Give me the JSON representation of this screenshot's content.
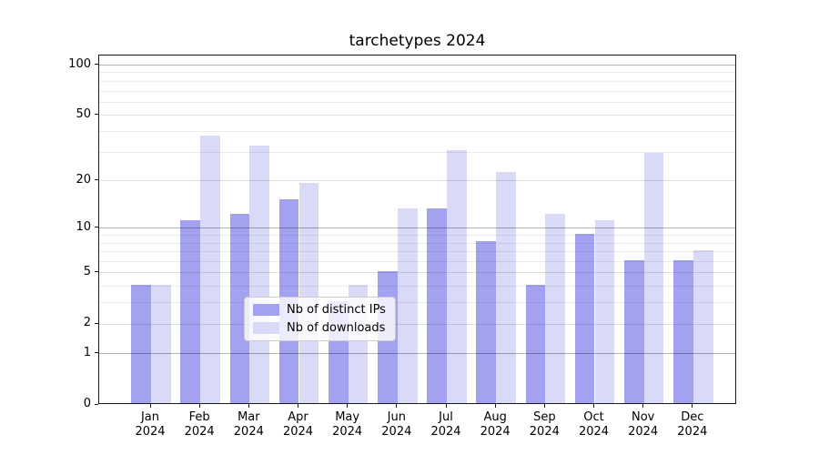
{
  "title": "tarchetypes 2024",
  "chart_data": {
    "type": "bar",
    "title": "tarchetypes 2024",
    "xlabel": "",
    "ylabel": "",
    "yscale": "log1p",
    "ylim": [
      0,
      114
    ],
    "grid": true,
    "legend_position": "lower center",
    "categories": [
      "Jan 2024",
      "Feb 2024",
      "Mar 2024",
      "Apr 2024",
      "May 2024",
      "Jun 2024",
      "Jul 2024",
      "Aug 2024",
      "Sep 2024",
      "Oct 2024",
      "Nov 2024",
      "Dec 2024"
    ],
    "series": [
      {
        "name": "Nb of distinct IPs",
        "color": "#a2a2f0",
        "values": [
          4,
          11,
          12,
          15,
          3,
          5,
          13,
          8,
          4,
          9,
          6,
          6
        ]
      },
      {
        "name": "Nb of downloads",
        "color": "#d9d9f8",
        "values": [
          4,
          37,
          32,
          19,
          4,
          13,
          30,
          22,
          12,
          11,
          29,
          7
        ]
      }
    ],
    "y_major_ticks": [
      0,
      1,
      2,
      5,
      10,
      20,
      50,
      100
    ],
    "y_strong_gridlines": [
      1,
      10,
      100
    ],
    "y_minor_gridlines": [
      3,
      4,
      6,
      7,
      8,
      9,
      30,
      40,
      60,
      70,
      80,
      90
    ]
  },
  "legend": {
    "items": [
      {
        "label": "Nb of distinct IPs",
        "color": "#a2a2f0"
      },
      {
        "label": "Nb of downloads",
        "color": "#d9d9f8"
      }
    ]
  }
}
